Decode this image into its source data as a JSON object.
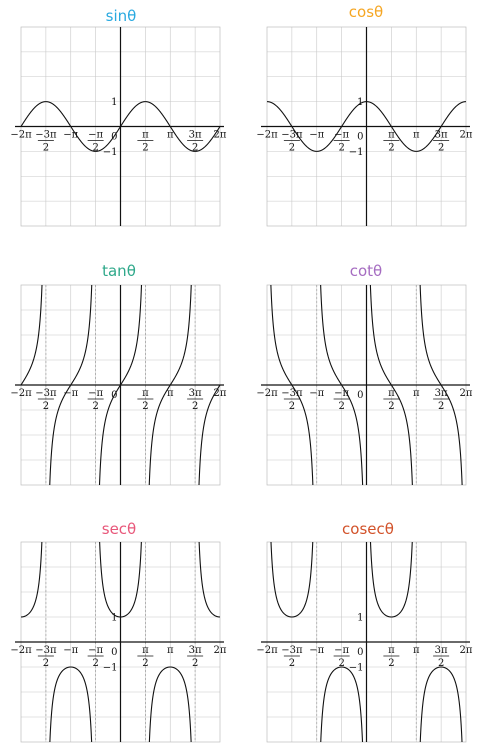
{
  "chart_data": [
    {
      "type": "line",
      "title": "sinθ",
      "title_color": "#29a9e0",
      "function": "sin",
      "x_range": [
        -6.2832,
        6.2832
      ],
      "ylim": [
        -4,
        4
      ],
      "grid": true,
      "x_tick_labels": [
        {
          "value": -6.2832,
          "label": "−2π"
        },
        {
          "value": -4.7124,
          "num": "−3π",
          "den": "2"
        },
        {
          "value": -3.1416,
          "label": "−π"
        },
        {
          "value": -1.5708,
          "num": "−π",
          "den": "2"
        },
        {
          "value": 1.5708,
          "num": "π",
          "den": "2"
        },
        {
          "value": 3.1416,
          "label": "π"
        },
        {
          "value": 4.7124,
          "num": "3π",
          "den": "2"
        },
        {
          "value": 6.2832,
          "label": "2π"
        }
      ],
      "y_tick_labels": [
        {
          "value": 1,
          "label": "1"
        },
        {
          "value": -1,
          "label": "−1"
        }
      ],
      "origin_label": "0"
    },
    {
      "type": "line",
      "title": "cosθ",
      "title_color": "#f5a623",
      "function": "cos",
      "x_range": [
        -6.2832,
        6.2832
      ],
      "ylim": [
        -4,
        4
      ],
      "grid": true,
      "x_tick_labels": [
        {
          "value": -6.2832,
          "label": "−2π"
        },
        {
          "value": -4.7124,
          "num": "−3π",
          "den": "2"
        },
        {
          "value": -3.1416,
          "label": "−π"
        },
        {
          "value": -1.5708,
          "num": "−π",
          "den": "2"
        },
        {
          "value": 1.5708,
          "num": "π",
          "den": "2"
        },
        {
          "value": 3.1416,
          "label": "π"
        },
        {
          "value": 4.7124,
          "num": "3π",
          "den": "2"
        },
        {
          "value": 6.2832,
          "label": "2π"
        }
      ],
      "y_tick_labels": [
        {
          "value": 1,
          "label": "1"
        },
        {
          "value": -1,
          "label": "−1"
        }
      ],
      "origin_label": "0"
    },
    {
      "type": "line",
      "title": "tanθ",
      "title_color": "#2ea88a",
      "function": "tan",
      "x_range": [
        -6.2832,
        6.2832
      ],
      "ylim": [
        -4,
        4
      ],
      "grid": true,
      "x_tick_labels": [
        {
          "value": -6.2832,
          "label": "−2π"
        },
        {
          "value": -4.7124,
          "num": "−3π",
          "den": "2"
        },
        {
          "value": -3.1416,
          "label": "−π"
        },
        {
          "value": -1.5708,
          "num": "−π",
          "den": "2"
        },
        {
          "value": 1.5708,
          "num": "π",
          "den": "2"
        },
        {
          "value": 3.1416,
          "label": "π"
        },
        {
          "value": 4.7124,
          "num": "3π",
          "den": "2"
        },
        {
          "value": 6.2832,
          "label": "2π"
        }
      ],
      "y_tick_labels": [],
      "origin_label": "0"
    },
    {
      "type": "line",
      "title": "cotθ",
      "title_color": "#a56cc1",
      "function": "cot",
      "x_range": [
        -6.2832,
        6.2832
      ],
      "ylim": [
        -4,
        4
      ],
      "grid": true,
      "x_tick_labels": [
        {
          "value": -6.2832,
          "label": "−2π"
        },
        {
          "value": -4.7124,
          "num": "−3π",
          "den": "2"
        },
        {
          "value": -3.1416,
          "label": "−π"
        },
        {
          "value": -1.5708,
          "num": "−π",
          "den": "2"
        },
        {
          "value": 1.5708,
          "num": "π",
          "den": "2"
        },
        {
          "value": 3.1416,
          "label": "π"
        },
        {
          "value": 4.7124,
          "num": "3π",
          "den": "2"
        },
        {
          "value": 6.2832,
          "label": "2π"
        }
      ],
      "y_tick_labels": [],
      "origin_label": "0"
    },
    {
      "type": "line",
      "title": "secθ",
      "title_color": "#e8577a",
      "function": "sec",
      "x_range": [
        -6.2832,
        6.2832
      ],
      "ylim": [
        -4,
        4
      ],
      "grid": true,
      "x_tick_labels": [
        {
          "value": -6.2832,
          "label": "−2π"
        },
        {
          "value": -4.7124,
          "num": "−3π",
          "den": "2"
        },
        {
          "value": -3.1416,
          "label": "−π"
        },
        {
          "value": -1.5708,
          "num": "−π",
          "den": "2"
        },
        {
          "value": 1.5708,
          "num": "π",
          "den": "2"
        },
        {
          "value": 3.1416,
          "label": "π"
        },
        {
          "value": 4.7124,
          "num": "3π",
          "den": "2"
        },
        {
          "value": 6.2832,
          "label": "2π"
        }
      ],
      "y_tick_labels": [
        {
          "value": 1,
          "label": "1"
        },
        {
          "value": -1,
          "label": "−1"
        }
      ],
      "origin_label": "0"
    },
    {
      "type": "line",
      "title": "cosecθ",
      "title_color": "#d2522a",
      "function": "cosec",
      "x_range": [
        -6.2832,
        6.2832
      ],
      "ylim": [
        -4,
        4
      ],
      "grid": true,
      "x_tick_labels": [
        {
          "value": -6.2832,
          "label": "−2π"
        },
        {
          "value": -4.7124,
          "num": "−3π",
          "den": "2"
        },
        {
          "value": -3.1416,
          "label": "−π"
        },
        {
          "value": -1.5708,
          "num": "−π",
          "den": "2"
        },
        {
          "value": 1.5708,
          "num": "π",
          "den": "2"
        },
        {
          "value": 3.1416,
          "label": "π"
        },
        {
          "value": 4.7124,
          "num": "3π",
          "den": "2"
        },
        {
          "value": 6.2832,
          "label": "2π"
        }
      ],
      "y_tick_labels": [
        {
          "value": 1,
          "label": "1"
        },
        {
          "value": -1,
          "label": "−1"
        }
      ],
      "origin_label": "0"
    }
  ]
}
